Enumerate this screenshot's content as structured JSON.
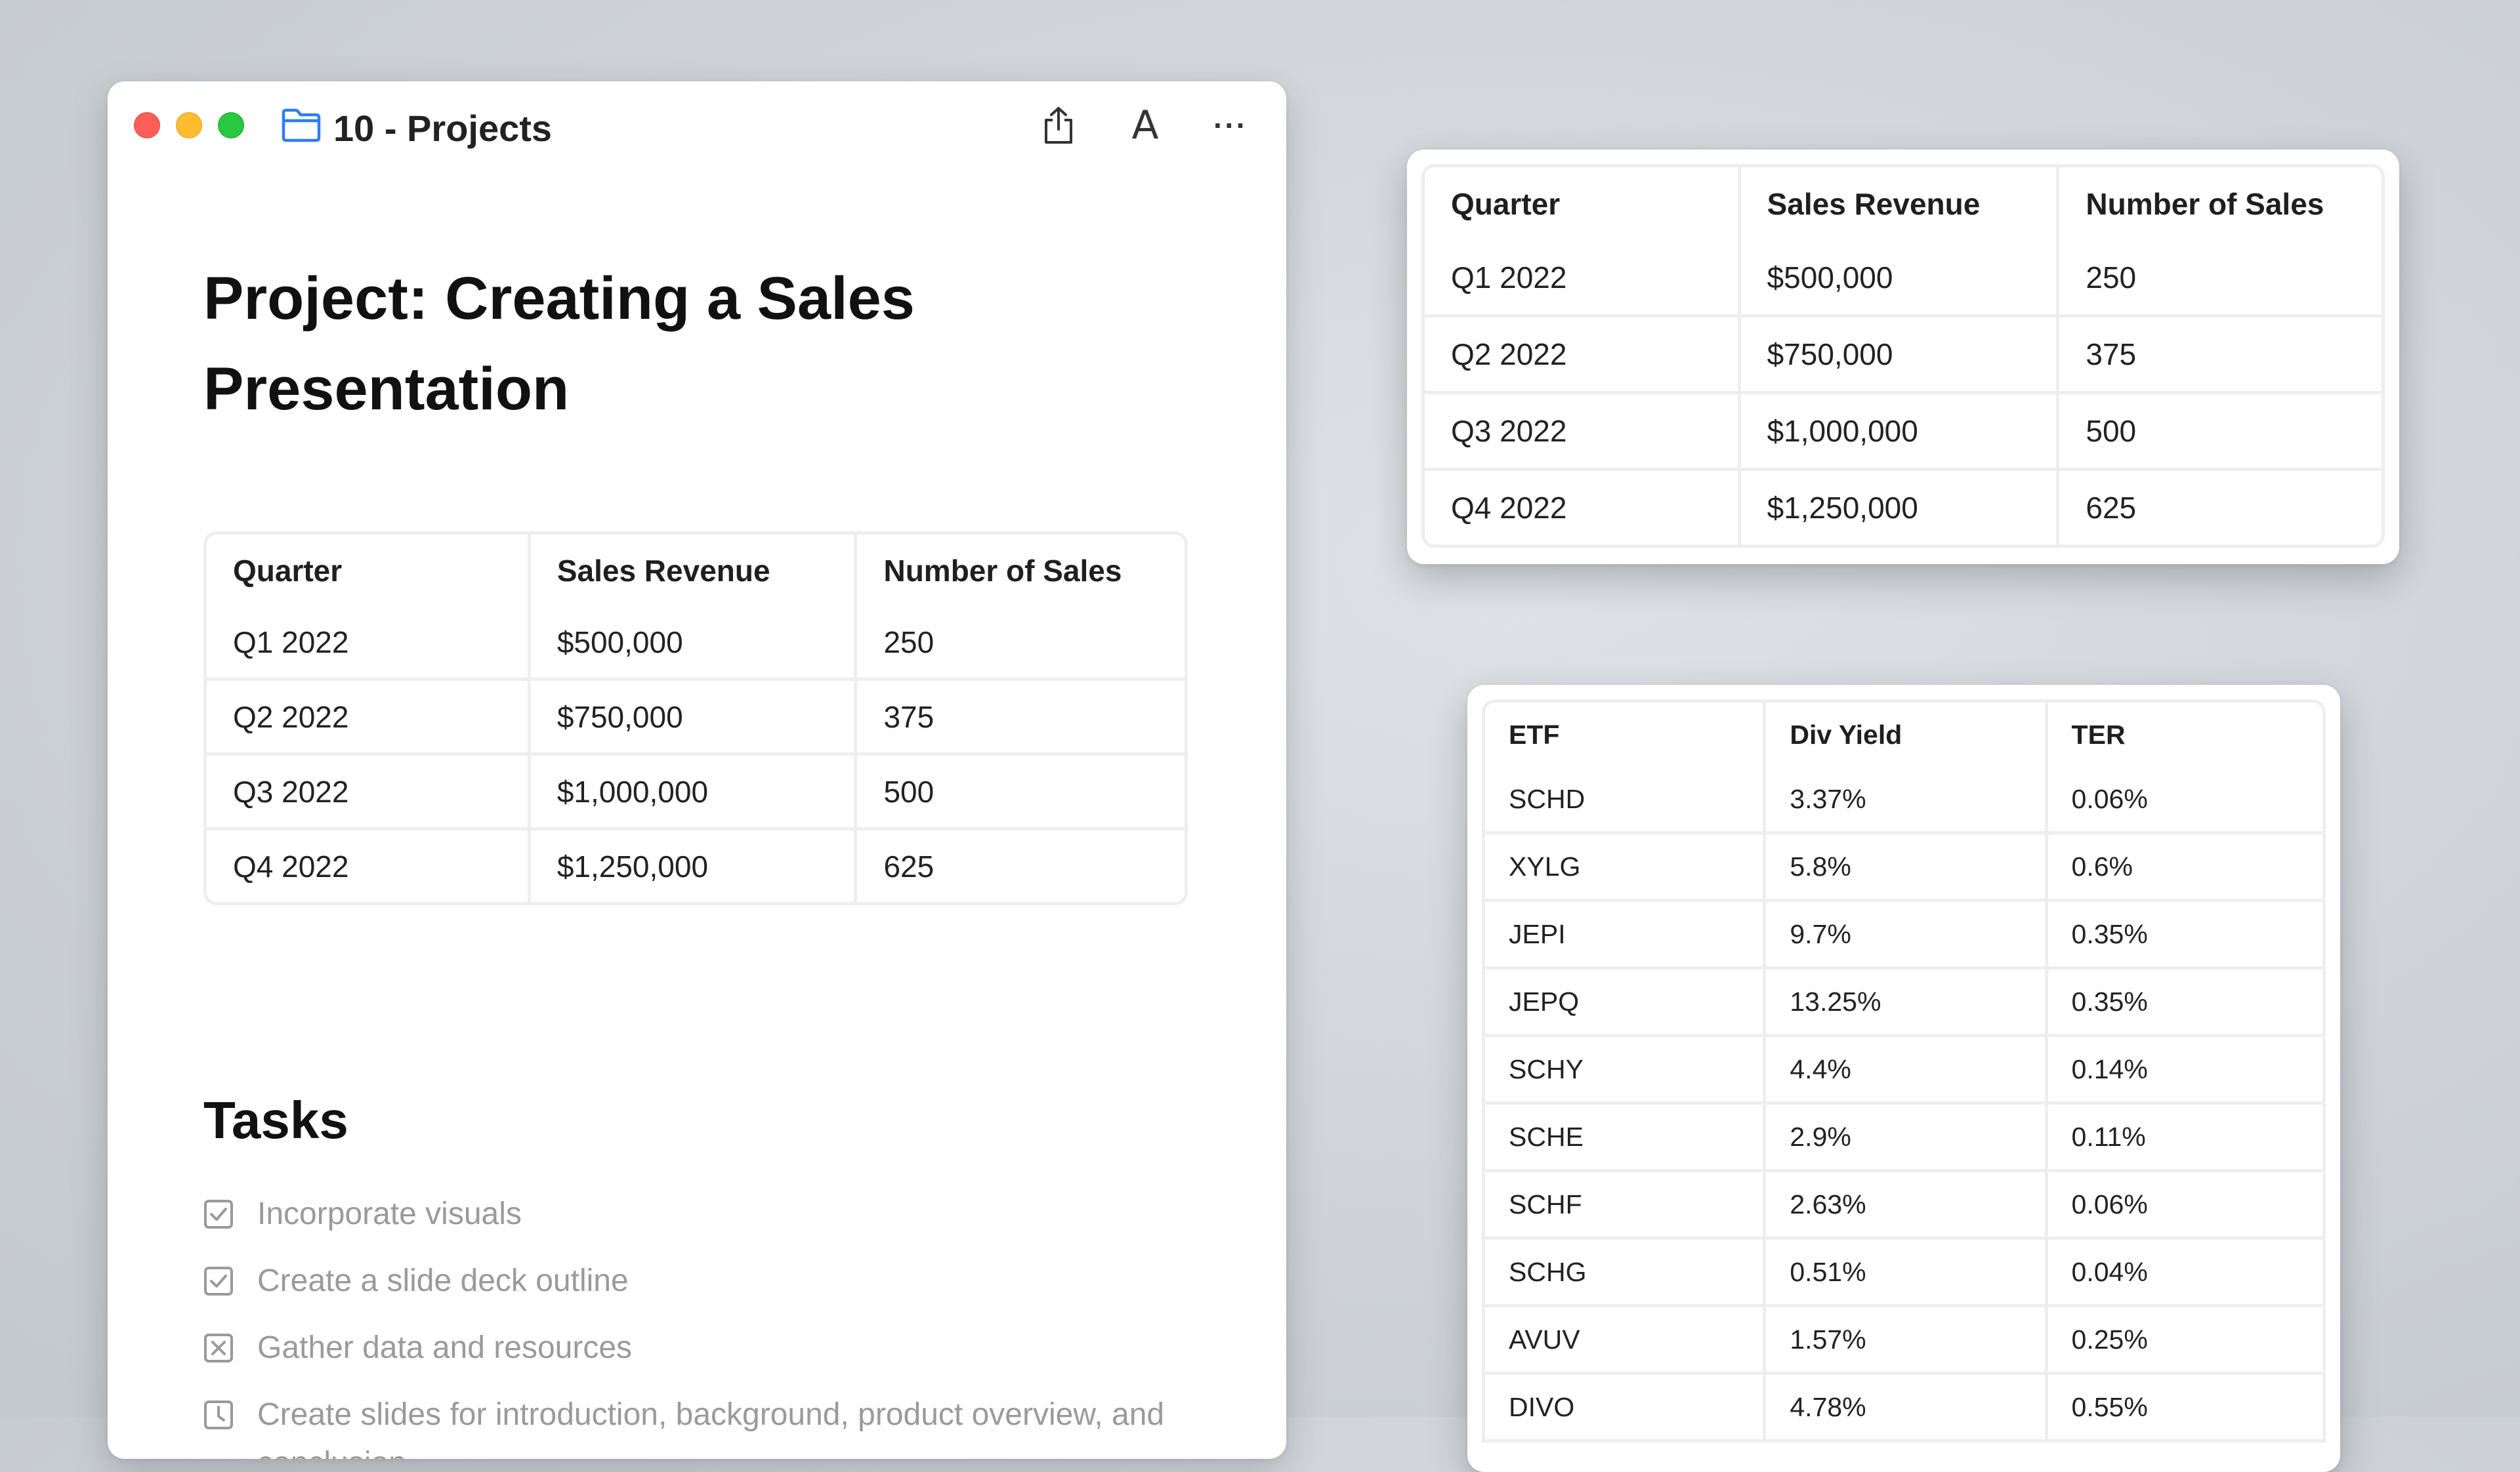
{
  "window": {
    "title": "10 - Projects",
    "icons": {
      "folder": "folder-icon",
      "share": "share-icon",
      "font": "A",
      "more": "···"
    }
  },
  "document": {
    "title": "Project: Creating a Sales Presentation",
    "sales_table": {
      "headers": [
        "Quarter",
        "Sales Revenue",
        "Number of Sales"
      ],
      "rows": [
        [
          "Q1 2022",
          "$500,000",
          "250"
        ],
        [
          "Q2 2022",
          "$750,000",
          "375"
        ],
        [
          "Q3 2022",
          "$1,000,000",
          "500"
        ],
        [
          "Q4 2022",
          "$1,250,000",
          "625"
        ]
      ]
    },
    "tasks_heading": "Tasks",
    "tasks": [
      {
        "label": "Incorporate visuals",
        "state": "checked"
      },
      {
        "label": "Create a slide deck outline",
        "state": "checked"
      },
      {
        "label": "Gather data and resources",
        "state": "cancelled"
      },
      {
        "label": "Create slides for introduction, background, product overview, and conclusion",
        "state": "scheduled"
      }
    ]
  },
  "sales_panel": {
    "headers": [
      "Quarter",
      "Sales Revenue",
      "Number of Sales"
    ],
    "rows": [
      [
        "Q1 2022",
        "$500,000",
        "250"
      ],
      [
        "Q2 2022",
        "$750,000",
        "375"
      ],
      [
        "Q3 2022",
        "$1,000,000",
        "500"
      ],
      [
        "Q4 2022",
        "$1,250,000",
        "625"
      ]
    ]
  },
  "etf_panel": {
    "headers": [
      "ETF",
      "Div Yield",
      "TER"
    ],
    "rows": [
      [
        "SCHD",
        "3.37%",
        "0.06%"
      ],
      [
        "XYLG",
        "5.8%",
        "0.6%"
      ],
      [
        "JEPI",
        "9.7%",
        "0.35%"
      ],
      [
        "JEPQ",
        "13.25%",
        "0.35%"
      ],
      [
        "SCHY",
        "4.4%",
        "0.14%"
      ],
      [
        "SCHE",
        "2.9%",
        "0.11%"
      ],
      [
        "SCHF",
        "2.63%",
        "0.06%"
      ],
      [
        "SCHG",
        "0.51%",
        "0.04%"
      ],
      [
        "AVUV",
        "1.57%",
        "0.25%"
      ],
      [
        "DIVO",
        "4.78%",
        "0.55%"
      ]
    ]
  }
}
